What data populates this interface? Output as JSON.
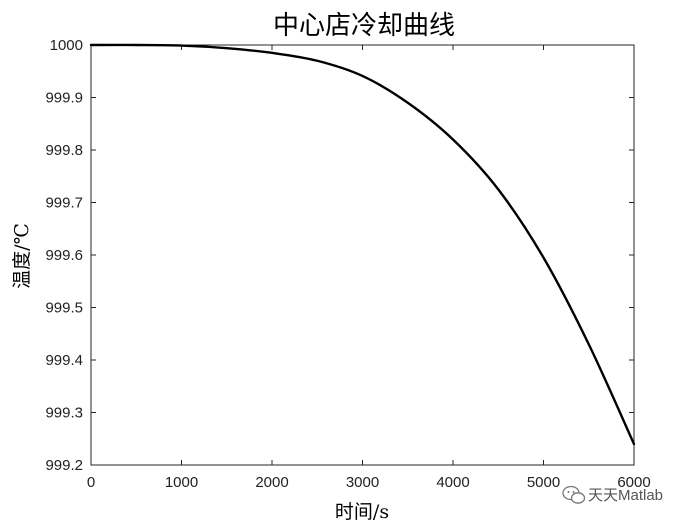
{
  "chart_data": {
    "type": "line",
    "title": "中心店冷却曲线",
    "xlabel": "时间/s",
    "ylabel": "温度/℃",
    "xlim": [
      0,
      6000
    ],
    "ylim": [
      999.2,
      1000
    ],
    "xticks": [
      "0",
      "1000",
      "2000",
      "3000",
      "4000",
      "5000",
      "6000"
    ],
    "yticks": [
      "1000",
      "999.9",
      "999.8",
      "999.7",
      "999.6",
      "999.5",
      "999.4",
      "999.3",
      "999.2"
    ],
    "grid": false,
    "series": [
      {
        "color": "#000000",
        "x": [
          0,
          500,
          1000,
          1500,
          2000,
          2500,
          3000,
          3500,
          4000,
          4500,
          5000,
          5500,
          6000
        ],
        "y": [
          1000.0,
          1000.0,
          999.999,
          999.994,
          999.985,
          999.97,
          999.941,
          999.89,
          999.82,
          999.725,
          999.595,
          999.43,
          999.24
        ]
      }
    ]
  },
  "watermark": {
    "icon": "wechat-icon",
    "text": "天天Matlab"
  }
}
